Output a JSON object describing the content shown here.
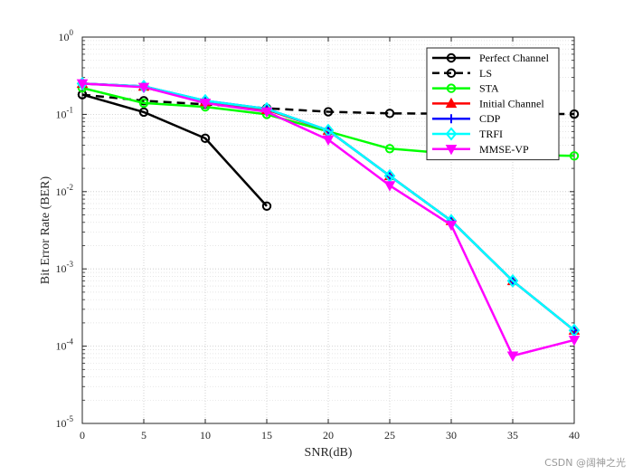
{
  "chart_data": {
    "type": "line",
    "xlabel": "SNR(dB)",
    "ylabel": "Bit Error Rate (BER)",
    "xlim": [
      0,
      40
    ],
    "ylim_exponents": [
      -5,
      0
    ],
    "yscale": "log",
    "x_ticks": [
      0,
      5,
      10,
      15,
      20,
      25,
      30,
      35,
      40
    ],
    "y_tick_exponents": [
      -5,
      -4,
      -3,
      -2,
      -1,
      0
    ],
    "y_tick_base": "10",
    "grid": "on (dotted)",
    "legend_position": "top-right",
    "series": [
      {
        "name": "Perfect Channel",
        "color": "#000000",
        "dash": "solid",
        "marker": "circle",
        "x": [
          0,
          5,
          10,
          15
        ],
        "y": [
          0.18,
          0.107,
          0.049,
          0.0065
        ]
      },
      {
        "name": "LS",
        "color": "#000000",
        "dash": "dashed",
        "marker": "circle",
        "x": [
          0,
          5,
          10,
          15,
          20,
          25,
          30,
          35,
          40
        ],
        "y": [
          0.18,
          0.15,
          0.135,
          0.12,
          0.108,
          0.103,
          0.102,
          0.101,
          0.101
        ]
      },
      {
        "name": "STA",
        "color": "#00ff00",
        "dash": "solid",
        "marker": "circle",
        "x": [
          0,
          5,
          10,
          15,
          20,
          25,
          30,
          35,
          40
        ],
        "y": [
          0.22,
          0.14,
          0.125,
          0.1,
          0.06,
          0.036,
          0.031,
          0.03,
          0.029
        ]
      },
      {
        "name": "Initial Channel",
        "color": "#ff0000",
        "dash": "solid",
        "marker": "triangle-up",
        "x": [
          0,
          5,
          10,
          15,
          20,
          25,
          30,
          35,
          40
        ],
        "y": [
          0.25,
          0.23,
          0.145,
          0.115,
          0.062,
          0.016,
          0.0042,
          0.0007,
          0.00016
        ]
      },
      {
        "name": "CDP",
        "color": "#0000ff",
        "dash": "solid",
        "marker": "plus",
        "x": [
          0,
          5,
          10,
          15,
          20,
          25,
          30,
          35,
          40
        ],
        "y": [
          0.25,
          0.23,
          0.15,
          0.118,
          0.062,
          0.016,
          0.0042,
          0.0007,
          0.00016
        ]
      },
      {
        "name": "TRFI",
        "color": "#00ffff",
        "dash": "solid",
        "marker": "diamond",
        "x": [
          0,
          5,
          10,
          15,
          20,
          25,
          30,
          35,
          40
        ],
        "y": [
          0.25,
          0.23,
          0.15,
          0.118,
          0.062,
          0.016,
          0.0042,
          0.0007,
          0.00016
        ]
      },
      {
        "name": "MMSE-VP",
        "color": "#ff00ff",
        "dash": "solid",
        "marker": "triangle-down",
        "x": [
          0,
          5,
          10,
          15,
          20,
          25,
          30,
          35,
          40
        ],
        "y": [
          0.25,
          0.225,
          0.14,
          0.108,
          0.047,
          0.012,
          0.0037,
          7.5e-05,
          0.00012
        ]
      }
    ]
  },
  "watermark": "CSDN @阔神之光"
}
